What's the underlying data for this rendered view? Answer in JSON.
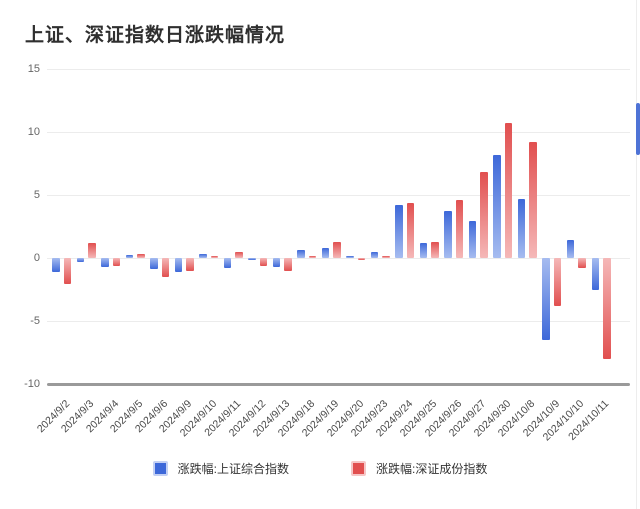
{
  "title": "上证、深证指数日涨跌幅情况",
  "colors": {
    "title_text": "#2f2f2f",
    "gridline": "#ececec",
    "bottom_axis": "#9a9a9a",
    "blue_dark": "#3d68d9",
    "blue_light": "#a6bcf0",
    "red_dark": "#e14f4f",
    "red_light": "#f5b8b8",
    "legend_blue_border": "#c3d0f4",
    "legend_red_border": "#f6c6c6",
    "scrollbar_thumb": "#4e73d6"
  },
  "legend": {
    "items": [
      {
        "label": "涨跌幅:上证综合指数"
      },
      {
        "label": "涨跌幅:深证成份指数"
      }
    ]
  },
  "chart_data": {
    "type": "bar",
    "title": "上证、深证指数日涨跌幅情况",
    "xlabel": "",
    "ylabel": "",
    "ylim": [
      -10,
      15
    ],
    "yticks": [
      15,
      10,
      5,
      0,
      -5,
      -10
    ],
    "grid": true,
    "legend_position": "bottom",
    "categories": [
      "2024/9/2",
      "2024/9/3",
      "2024/9/4",
      "2024/9/5",
      "2024/9/6",
      "2024/9/9",
      "2024/9/10",
      "2024/9/11",
      "2024/9/12",
      "2024/9/13",
      "2024/9/18",
      "2024/9/19",
      "2024/9/20",
      "2024/9/23",
      "2024/9/24",
      "2024/9/25",
      "2024/9/26",
      "2024/9/27",
      "2024/9/30",
      "2024/10/8",
      "2024/10/9",
      "2024/10/10",
      "2024/10/11"
    ],
    "series": [
      {
        "name": "涨跌幅:上证综合指数",
        "color_dark": "#3d68d9",
        "color_light": "#a6bcf0",
        "values": [
          -1.1,
          -0.3,
          -0.7,
          0.2,
          -0.9,
          -1.1,
          0.3,
          -0.8,
          -0.1,
          -0.7,
          0.6,
          0.8,
          0.1,
          0.5,
          4.2,
          1.2,
          3.7,
          2.9,
          8.2,
          4.7,
          -6.5,
          1.4,
          -2.5
        ]
      },
      {
        "name": "涨跌幅:深证成份指数",
        "color_dark": "#e14f4f",
        "color_light": "#f5b8b8",
        "values": [
          -2.1,
          1.2,
          -0.6,
          0.3,
          -1.5,
          -1.0,
          0.1,
          0.5,
          -0.6,
          -1.0,
          0.1,
          1.3,
          -0.1,
          0.1,
          4.4,
          1.3,
          4.6,
          6.8,
          10.7,
          9.2,
          -3.8,
          -0.8,
          -8.0
        ]
      }
    ]
  }
}
